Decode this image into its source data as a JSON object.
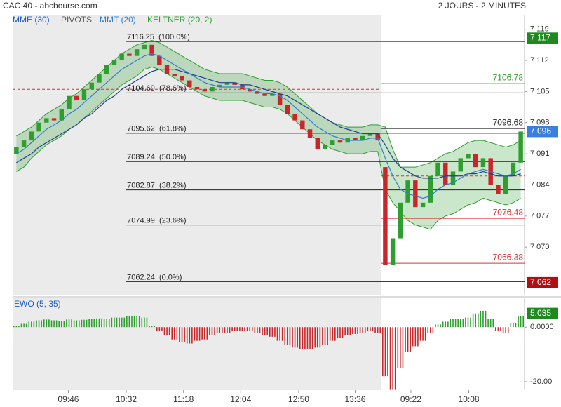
{
  "chart_data": [
    {
      "type": "candlestick",
      "title": "CAC 40 - abcbourse.com",
      "subtitle": "2 JOURS - 2 MINUTES",
      "xlim": [
        0,
        68
      ],
      "xticks": [
        {
          "value": 7.4,
          "label": "09:46"
        },
        {
          "value": 15.1,
          "label": "10:32"
        },
        {
          "value": 22.7,
          "label": "11:18"
        },
        {
          "value": 30.3,
          "label": "12:04"
        },
        {
          "value": 38,
          "label": "12:50"
        },
        {
          "value": 45.5,
          "label": "13:36"
        },
        {
          "value": 52.9,
          "label": "09:22"
        },
        {
          "value": 60.6,
          "label": "10:08"
        }
      ],
      "ylim": [
        7059.3,
        7122.1
      ],
      "yticks": [
        {
          "value": 7119,
          "label": "7 119"
        },
        {
          "value": 7112,
          "label": "7 112"
        },
        {
          "value": 7105,
          "label": "7 105"
        },
        {
          "value": 7098,
          "label": "7 098"
        },
        {
          "value": 7091,
          "label": "7 091"
        },
        {
          "value": 7084,
          "label": "7 084"
        },
        {
          "value": 7077,
          "label": "7 077"
        },
        {
          "value": 7070,
          "label": "7 070"
        }
      ],
      "shaded_xlim": [
        0,
        49
      ],
      "up_color": "#2e9e2e",
      "down_color": "#c8262a",
      "open": [
        7091,
        7092.5,
        7094,
        7096,
        7098,
        7099,
        7098.5,
        7101,
        7104,
        7103,
        7105.5,
        7107,
        7109,
        7111,
        7112,
        7113.5,
        7113,
        7114.5,
        7115.5,
        7113,
        7111,
        7109,
        7108.5,
        7107.5,
        7106,
        7105.5,
        7105,
        7106,
        7106.5,
        7107,
        7106.5,
        7105.5,
        7105,
        7104.5,
        7104,
        7104.5,
        7102,
        7100,
        7098.5,
        7096.5,
        7094.5,
        7092,
        7093,
        7094,
        7093.5,
        7094.5,
        7094,
        7095,
        7095.5,
        7088,
        7066,
        7072,
        7080,
        7085,
        7079,
        7080,
        7086,
        7089,
        7084,
        7087,
        7090,
        7091,
        7088,
        7090,
        7084,
        7082,
        7086,
        7089
      ],
      "close": [
        7092.5,
        7094,
        7096,
        7098,
        7099,
        7098.5,
        7101,
        7104,
        7103,
        7105.5,
        7107,
        7109,
        7111,
        7112,
        7113.5,
        7113,
        7114.5,
        7115.5,
        7113,
        7111,
        7109,
        7108.5,
        7107.5,
        7106,
        7105.5,
        7105,
        7106,
        7106.5,
        7107,
        7106.5,
        7105.5,
        7105,
        7104.5,
        7104,
        7104.5,
        7102,
        7100,
        7098.5,
        7096.5,
        7094.5,
        7092,
        7093,
        7094,
        7093.5,
        7094.5,
        7094,
        7095,
        7095.5,
        7094,
        7066,
        7072,
        7080,
        7085,
        7079,
        7080,
        7086,
        7089,
        7084,
        7087,
        7090,
        7091,
        7088,
        7090,
        7084,
        7082,
        7086,
        7089,
        7096
      ],
      "series": [
        {
          "name": "MME (30)",
          "color": "#1f3f8f",
          "values": [
            7089,
            7090,
            7091,
            7092.5,
            7093.5,
            7094.5,
            7095.5,
            7096.5,
            7097.5,
            7099,
            7100,
            7101.5,
            7103,
            7104,
            7105.5,
            7106.5,
            7107.5,
            7108.5,
            7109.5,
            7110,
            7110,
            7110,
            7109.5,
            7109,
            7108.5,
            7108,
            7107.5,
            7107,
            7107,
            7107,
            7106.5,
            7106.5,
            7106,
            7105.5,
            7105,
            7104.5,
            7104,
            7103,
            7102,
            7101,
            7100,
            7099,
            7098,
            7097,
            7096.5,
            7096,
            7095.5,
            7095.5,
            7095.5,
            7093,
            7090,
            7088,
            7087,
            7086,
            7085.5,
            7085.5,
            7085.5,
            7086,
            7086,
            7086,
            7086.5,
            7086.5,
            7087,
            7086.5,
            7086,
            7086,
            7086,
            7086.5
          ]
        },
        {
          "name": "MMT (20)",
          "color": "#2f7fcf",
          "values": [
            7091,
            7092,
            7093.5,
            7095,
            7096.5,
            7097.5,
            7098.5,
            7100,
            7101,
            7102.5,
            7104,
            7105.5,
            7107,
            7108.5,
            7110,
            7111,
            7112,
            7113,
            7113.5,
            7113,
            7112,
            7111,
            7110,
            7109,
            7108,
            7107,
            7106.5,
            7106,
            7106,
            7106,
            7106,
            7105.5,
            7105,
            7104.5,
            7104.5,
            7104,
            7103,
            7101.5,
            7100,
            7098.5,
            7097,
            7096,
            7095,
            7094.5,
            7094,
            7094,
            7094,
            7094.5,
            7094.5,
            7090,
            7086,
            7083,
            7082,
            7081.5,
            7081,
            7081.5,
            7083,
            7084,
            7084.5,
            7085.5,
            7086.5,
            7087,
            7087.5,
            7087,
            7086.5,
            7086,
            7086.5,
            7087.5
          ]
        }
      ],
      "keltner": {
        "name": "KELTNER (20, 2)",
        "color": "#2e9e2e",
        "upper": [
          7095,
          7096,
          7097,
          7098.5,
          7100,
          7101,
          7102,
          7103.5,
          7104.5,
          7106,
          7107.5,
          7109,
          7110.5,
          7112,
          7113.5,
          7114.5,
          7115.5,
          7116,
          7116.5,
          7116,
          7115,
          7114,
          7113,
          7112,
          7111,
          7110,
          7109.5,
          7109,
          7109,
          7109,
          7109,
          7108.5,
          7108,
          7107.5,
          7107.5,
          7107,
          7106,
          7104.5,
          7103,
          7101.5,
          7100,
          7099,
          7098,
          7097.5,
          7097,
          7097,
          7097,
          7097.5,
          7097.5,
          7097,
          7092,
          7088,
          7088,
          7088,
          7088.5,
          7089,
          7090,
          7091,
          7091.5,
          7092.5,
          7093.5,
          7094,
          7094,
          7093.5,
          7093,
          7092.5,
          7093,
          7094
        ],
        "lower": [
          7087,
          7088,
          7090,
          7091.5,
          7093,
          7094,
          7095,
          7096.5,
          7097.5,
          7099,
          7100.5,
          7102,
          7103.5,
          7105,
          7106.5,
          7107.5,
          7108.5,
          7110,
          7110.5,
          7110,
          7109,
          7108,
          7107,
          7106,
          7105,
          7104,
          7103.5,
          7103,
          7103,
          7103,
          7103,
          7102.5,
          7102,
          7101.5,
          7101.5,
          7101,
          7100,
          7098.5,
          7097,
          7095.5,
          7094,
          7093,
          7092,
          7091.5,
          7091,
          7091,
          7091,
          7091.5,
          7091.5,
          7083,
          7080,
          7078,
          7076,
          7075,
          7074.5,
          7074,
          7076,
          7077,
          7077.5,
          7078.5,
          7079.5,
          7080,
          7081,
          7080.5,
          7080,
          7079.5,
          7080,
          7081
        ]
      },
      "pivots": {
        "name": "PIVOTS",
        "color": "#d33333",
        "levels": [
          {
            "value": 7105.5,
            "xlim": [
              0,
              49
            ]
          },
          {
            "value": 7086,
            "xlim": [
              49,
              68
            ]
          }
        ]
      },
      "fibonacci": {
        "xlim": [
          15.1,
          68
        ],
        "levels": [
          {
            "value": 7116.25,
            "label": "7116.25  (100.0%)"
          },
          {
            "value": 7104.69,
            "label": "7104.69  (78.6%)"
          },
          {
            "value": 7095.62,
            "label": "7095.62  (61.8%)"
          },
          {
            "value": 7089.24,
            "label": "7089.24  (50.0%)"
          },
          {
            "value": 7082.87,
            "label": "7082.87  (38.2%)"
          },
          {
            "value": 7074.99,
            "label": "7074.99  (23.6%)"
          },
          {
            "value": 7062.24,
            "label": "7062.24  (0.0%)"
          }
        ]
      },
      "lines": {
        "xlim": [
          49,
          68
        ],
        "levels": [
          {
            "value": 7106.78,
            "color": "#2e9e2e"
          },
          {
            "value": 7096.68,
            "color": "#222222"
          },
          {
            "value": 7076.48,
            "color": "#e03030"
          },
          {
            "value": 7066.38,
            "color": "#e03030"
          }
        ]
      },
      "badges": [
        {
          "value": 7117,
          "label": "7 117",
          "color": "#1e8a1e"
        },
        {
          "value": 7096,
          "label": "7 096",
          "color": "#3a7fe0"
        },
        {
          "value": 7062,
          "label": "7 062",
          "color": "#b01010"
        }
      ]
    },
    {
      "type": "bar",
      "title": "EWO (5, 35)",
      "xlim": [
        0,
        68
      ],
      "shaded_xlim": [
        0,
        49
      ],
      "ylim": [
        -23.1,
        10.6
      ],
      "yticks": [
        {
          "value": 0,
          "label": "0.0000"
        },
        {
          "value": -20,
          "label": "-20.00"
        }
      ],
      "up_color": "#2e9e2e",
      "down_color": "#c8262a",
      "values": [
        0.5,
        1.2,
        2,
        2.5,
        2.8,
        2.5,
        2.2,
        2.8,
        2.5,
        2.7,
        3,
        3.2,
        3,
        3.5,
        3.5,
        4,
        4,
        3.5,
        0.5,
        -1.5,
        -3,
        -4.5,
        -5.5,
        -6,
        -5,
        -4.5,
        -3,
        -2,
        -2,
        -1.5,
        -1.5,
        -1.5,
        -2,
        -3,
        -3.5,
        -5,
        -6.5,
        -7.5,
        -8,
        -8,
        -7.5,
        -6.5,
        -5,
        -4,
        -3,
        -2.5,
        -2,
        -1.5,
        -2,
        -18,
        -23,
        -15,
        -9,
        -7,
        -5,
        -2,
        1,
        2,
        3,
        3,
        3.5,
        5,
        6,
        3,
        -1.5,
        -2,
        1.5,
        4
      ],
      "badge": {
        "value": 5.035,
        "label": "5.035",
        "color": "#1e8a1e"
      }
    }
  ]
}
